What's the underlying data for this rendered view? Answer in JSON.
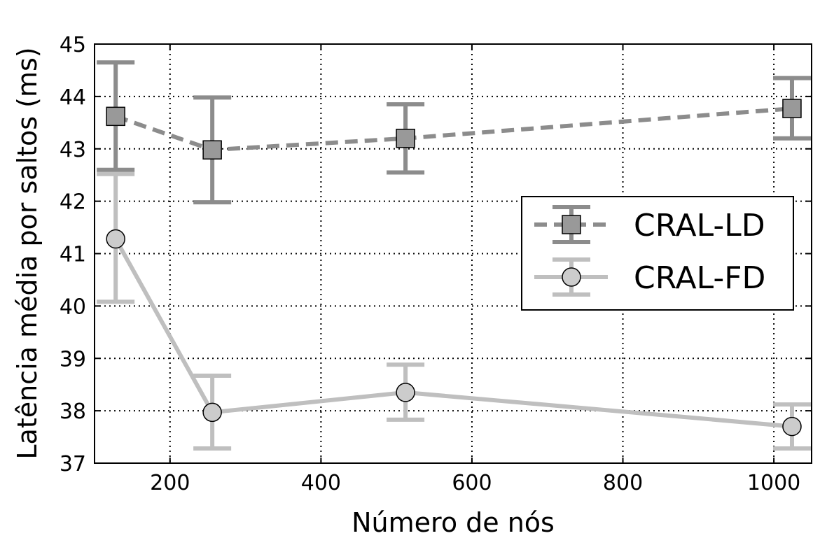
{
  "chart_data": {
    "type": "line",
    "xlabel": "Número de nós",
    "ylabel": "Latência média por saltos (ms)",
    "xlim": [
      100,
      1050
    ],
    "ylim": [
      37,
      45
    ],
    "xticks": [
      200,
      400,
      600,
      800,
      1000
    ],
    "yticks": [
      37,
      38,
      39,
      40,
      41,
      42,
      43,
      44,
      45
    ],
    "grid": true,
    "legend_position": "right",
    "series": [
      {
        "name": "CRAL-LD",
        "marker": "square",
        "line_style": "dashed",
        "color": "#8c8c8c",
        "marker_fill": "#999999",
        "x": [
          128,
          256,
          512,
          1024
        ],
        "y": [
          43.62,
          42.98,
          43.2,
          43.77
        ],
        "err_low": [
          42.6,
          41.98,
          42.55,
          43.2
        ],
        "err_high": [
          44.65,
          43.98,
          43.85,
          44.35
        ]
      },
      {
        "name": "CRAL-FD",
        "marker": "circle",
        "line_style": "solid",
        "color": "#bfbfbf",
        "marker_fill": "#cccccc",
        "x": [
          128,
          256,
          512,
          1024
        ],
        "y": [
          41.28,
          37.97,
          38.35,
          37.7
        ],
        "err_low": [
          40.08,
          37.28,
          37.83,
          37.28
        ],
        "err_high": [
          42.52,
          38.67,
          38.88,
          38.12
        ]
      }
    ]
  }
}
